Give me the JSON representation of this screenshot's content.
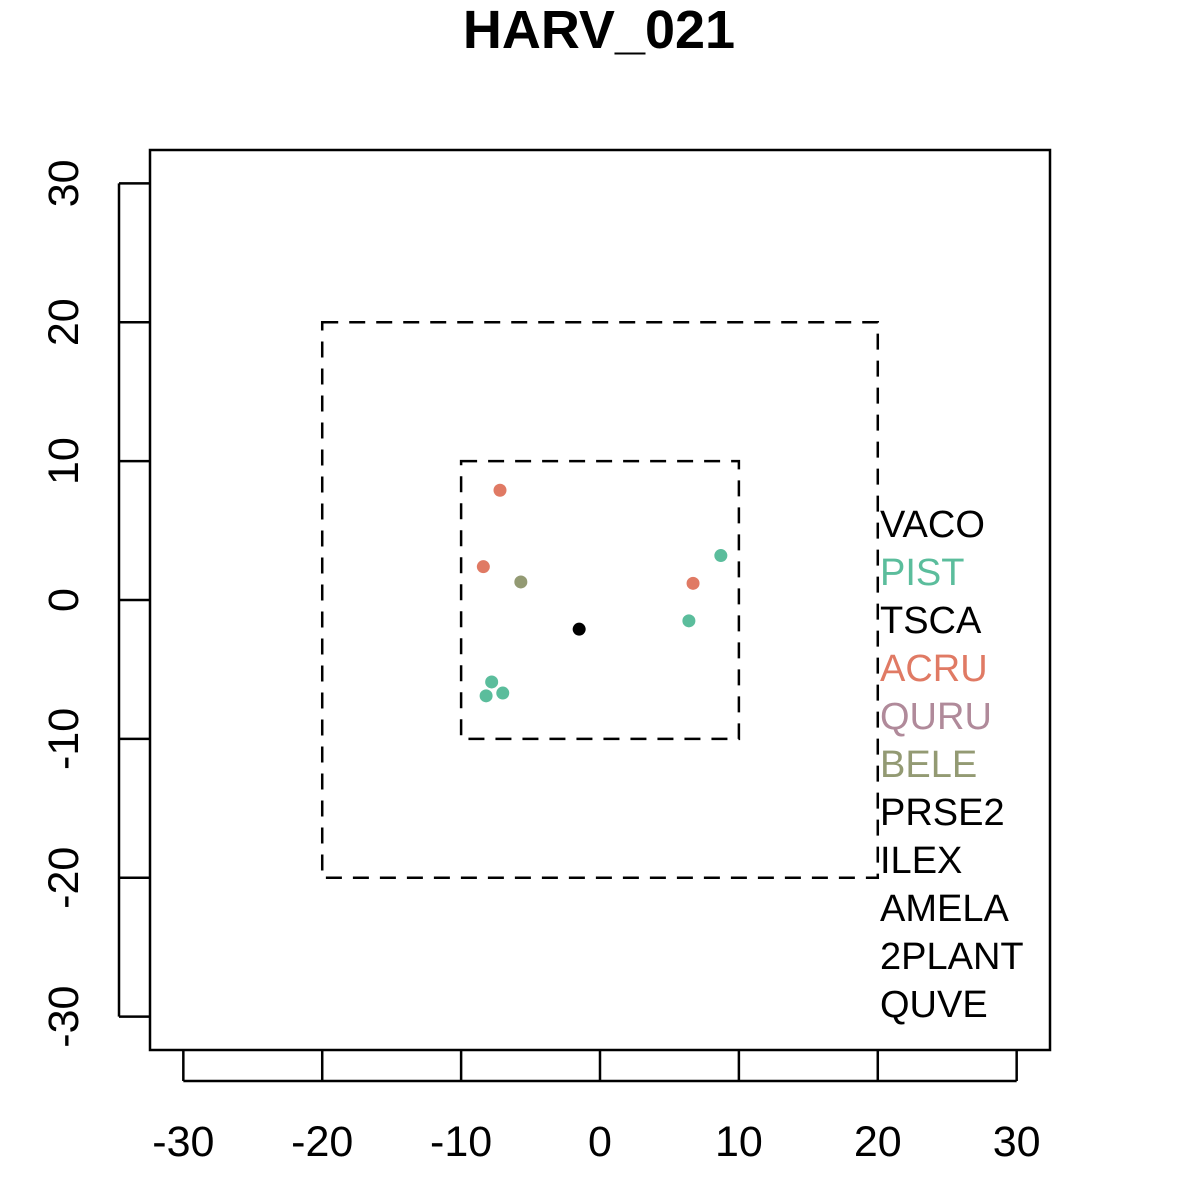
{
  "chart_data": {
    "type": "scatter",
    "title": "HARV_021",
    "xlabel": "",
    "ylabel": "",
    "xlim": [
      -32.4,
      32.4
    ],
    "ylim": [
      -32.4,
      32.4
    ],
    "x_ticks": [
      -30,
      -20,
      -10,
      0,
      10,
      20,
      30
    ],
    "y_ticks": [
      -30,
      -20,
      -10,
      0,
      10,
      20,
      30
    ],
    "x_tick_labels": [
      "-30",
      "-20",
      "-10",
      "0",
      "10",
      "20",
      "30"
    ],
    "y_tick_labels": [
      "-30",
      "-20",
      "-10",
      "0",
      "10",
      "20",
      "30"
    ],
    "grid": false,
    "legend_position": "right",
    "boundaries": [
      {
        "name": "outer-square",
        "xmin": -20,
        "xmax": 20,
        "ymin": -20,
        "ymax": 20,
        "style": "dashed"
      },
      {
        "name": "inner-square",
        "xmin": -10,
        "xmax": 10,
        "ymin": -10,
        "ymax": 10,
        "style": "dashed"
      }
    ],
    "legend": [
      {
        "label": "VACO",
        "color": "#000000"
      },
      {
        "label": "PIST",
        "color": "#5BBD9C"
      },
      {
        "label": "TSCA",
        "color": "#000000"
      },
      {
        "label": "ACRU",
        "color": "#E07A64"
      },
      {
        "label": "QURU",
        "color": "#B08A9A"
      },
      {
        "label": "BELE",
        "color": "#939A73"
      },
      {
        "label": "PRSE2",
        "color": "#000000"
      },
      {
        "label": "ILEX",
        "color": "#000000"
      },
      {
        "label": "AMELA",
        "color": "#000000"
      },
      {
        "label": "2PLANT",
        "color": "#000000"
      },
      {
        "label": "QUVE",
        "color": "#000000"
      }
    ],
    "points": [
      {
        "x": -7.2,
        "y": 7.9,
        "species": "ACRU",
        "color": "#E07A64"
      },
      {
        "x": -8.4,
        "y": 2.4,
        "species": "ACRU",
        "color": "#E07A64"
      },
      {
        "x": 6.7,
        "y": 1.2,
        "species": "ACRU",
        "color": "#E07A64"
      },
      {
        "x": -5.7,
        "y": 1.3,
        "species": "BELE",
        "color": "#939A73"
      },
      {
        "x": 8.7,
        "y": 3.2,
        "species": "PIST",
        "color": "#5BBD9C"
      },
      {
        "x": 6.4,
        "y": -1.5,
        "species": "PIST",
        "color": "#5BBD9C"
      },
      {
        "x": -1.5,
        "y": -2.1,
        "species": "TSCA",
        "color": "#000000"
      },
      {
        "x": -7.8,
        "y": -5.9,
        "species": "PIST",
        "color": "#5BBD9C"
      },
      {
        "x": -7.0,
        "y": -6.7,
        "species": "PIST",
        "color": "#5BBD9C"
      },
      {
        "x": -8.2,
        "y": -6.9,
        "species": "PIST",
        "color": "#5BBD9C"
      }
    ]
  }
}
